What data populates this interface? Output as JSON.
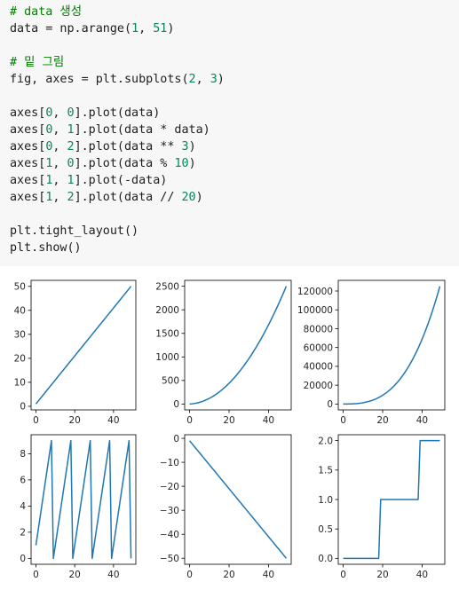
{
  "code_cell": {
    "lines": [
      [
        {
          "t": "# data 생성",
          "c": "comment"
        }
      ],
      [
        {
          "t": "data = np.arange(",
          "c": "plain"
        },
        {
          "t": "1",
          "c": "num"
        },
        {
          "t": ", ",
          "c": "plain"
        },
        {
          "t": "51",
          "c": "num"
        },
        {
          "t": ")",
          "c": "plain"
        }
      ],
      [],
      [
        {
          "t": "# 밑 그림",
          "c": "comment"
        }
      ],
      [
        {
          "t": "fig, axes = plt.subplots(",
          "c": "plain"
        },
        {
          "t": "2",
          "c": "num"
        },
        {
          "t": ", ",
          "c": "plain"
        },
        {
          "t": "3",
          "c": "num"
        },
        {
          "t": ")",
          "c": "plain"
        }
      ],
      [],
      [
        {
          "t": "axes[",
          "c": "plain"
        },
        {
          "t": "0",
          "c": "num"
        },
        {
          "t": ", ",
          "c": "plain"
        },
        {
          "t": "0",
          "c": "num"
        },
        {
          "t": "].plot(data)",
          "c": "plain"
        }
      ],
      [
        {
          "t": "axes[",
          "c": "plain"
        },
        {
          "t": "0",
          "c": "num"
        },
        {
          "t": ", ",
          "c": "plain"
        },
        {
          "t": "1",
          "c": "num"
        },
        {
          "t": "].plot(data * data)",
          "c": "plain"
        }
      ],
      [
        {
          "t": "axes[",
          "c": "plain"
        },
        {
          "t": "0",
          "c": "num"
        },
        {
          "t": ", ",
          "c": "plain"
        },
        {
          "t": "2",
          "c": "num"
        },
        {
          "t": "].plot(data ** ",
          "c": "plain"
        },
        {
          "t": "3",
          "c": "num"
        },
        {
          "t": ")",
          "c": "plain"
        }
      ],
      [
        {
          "t": "axes[",
          "c": "plain"
        },
        {
          "t": "1",
          "c": "num"
        },
        {
          "t": ", ",
          "c": "plain"
        },
        {
          "t": "0",
          "c": "num"
        },
        {
          "t": "].plot(data % ",
          "c": "plain"
        },
        {
          "t": "10",
          "c": "num"
        },
        {
          "t": ")",
          "c": "plain"
        }
      ],
      [
        {
          "t": "axes[",
          "c": "plain"
        },
        {
          "t": "1",
          "c": "num"
        },
        {
          "t": ", ",
          "c": "plain"
        },
        {
          "t": "1",
          "c": "num"
        },
        {
          "t": "].plot(-data)",
          "c": "plain"
        }
      ],
      [
        {
          "t": "axes[",
          "c": "plain"
        },
        {
          "t": "1",
          "c": "num"
        },
        {
          "t": ", ",
          "c": "plain"
        },
        {
          "t": "2",
          "c": "num"
        },
        {
          "t": "].plot(data // ",
          "c": "plain"
        },
        {
          "t": "20",
          "c": "num"
        },
        {
          "t": ")",
          "c": "plain"
        }
      ],
      [],
      [
        {
          "t": "plt.tight_layout()",
          "c": "plain"
        }
      ],
      [
        {
          "t": "plt.show()",
          "c": "plain"
        }
      ]
    ]
  },
  "chart_data": [
    {
      "type": "line",
      "x": {
        "start": 0,
        "stop": 49
      },
      "expr": "data",
      "xlim": [
        -2.5,
        51.5
      ],
      "ylim": [
        -1.5,
        52.5
      ],
      "xticks": [
        0,
        20,
        40
      ],
      "yticks": [
        0,
        10,
        20,
        30,
        40,
        50
      ],
      "color": "#1f77b4"
    },
    {
      "type": "line",
      "x": {
        "start": 0,
        "stop": 49
      },
      "expr": "data * data",
      "xlim": [
        -2.5,
        51.5
      ],
      "ylim": [
        -124,
        2625
      ],
      "xticks": [
        0,
        20,
        40
      ],
      "yticks": [
        0,
        500,
        1000,
        1500,
        2000,
        2500
      ],
      "color": "#1f77b4"
    },
    {
      "type": "line",
      "x": {
        "start": 0,
        "stop": 49
      },
      "expr": "data ** 3",
      "xlim": [
        -2.5,
        51.5
      ],
      "ylim": [
        -6249,
        131301
      ],
      "xticks": [
        0,
        20,
        40
      ],
      "yticks": [
        0,
        20000,
        40000,
        60000,
        80000,
        100000,
        120000
      ],
      "color": "#1f77b4"
    },
    {
      "type": "line",
      "x": {
        "start": 0,
        "stop": 49
      },
      "expr": "data % 10",
      "xlim": [
        -2.5,
        51.5
      ],
      "ylim": [
        -0.45,
        9.45
      ],
      "xticks": [
        0,
        20,
        40
      ],
      "yticks": [
        0,
        2,
        4,
        6,
        8
      ],
      "color": "#1f77b4"
    },
    {
      "type": "line",
      "x": {
        "start": 0,
        "stop": 49
      },
      "expr": "-data",
      "xlim": [
        -2.5,
        51.5
      ],
      "ylim": [
        -52.5,
        1.5
      ],
      "xticks": [
        0,
        20,
        40
      ],
      "yticks": [
        0,
        -10,
        -20,
        -30,
        -40,
        -50
      ],
      "color": "#1f77b4"
    },
    {
      "type": "line",
      "x": {
        "start": 0,
        "stop": 49
      },
      "expr": "data // 20",
      "xlim": [
        -2.5,
        51.5
      ],
      "ylim": [
        -0.1,
        2.1
      ],
      "xticks": [
        0,
        20,
        40
      ],
      "yticks": [
        0.0,
        0.5,
        1.0,
        1.5,
        2.0
      ],
      "ytick_format": "fixed1",
      "color": "#1f77b4"
    }
  ]
}
